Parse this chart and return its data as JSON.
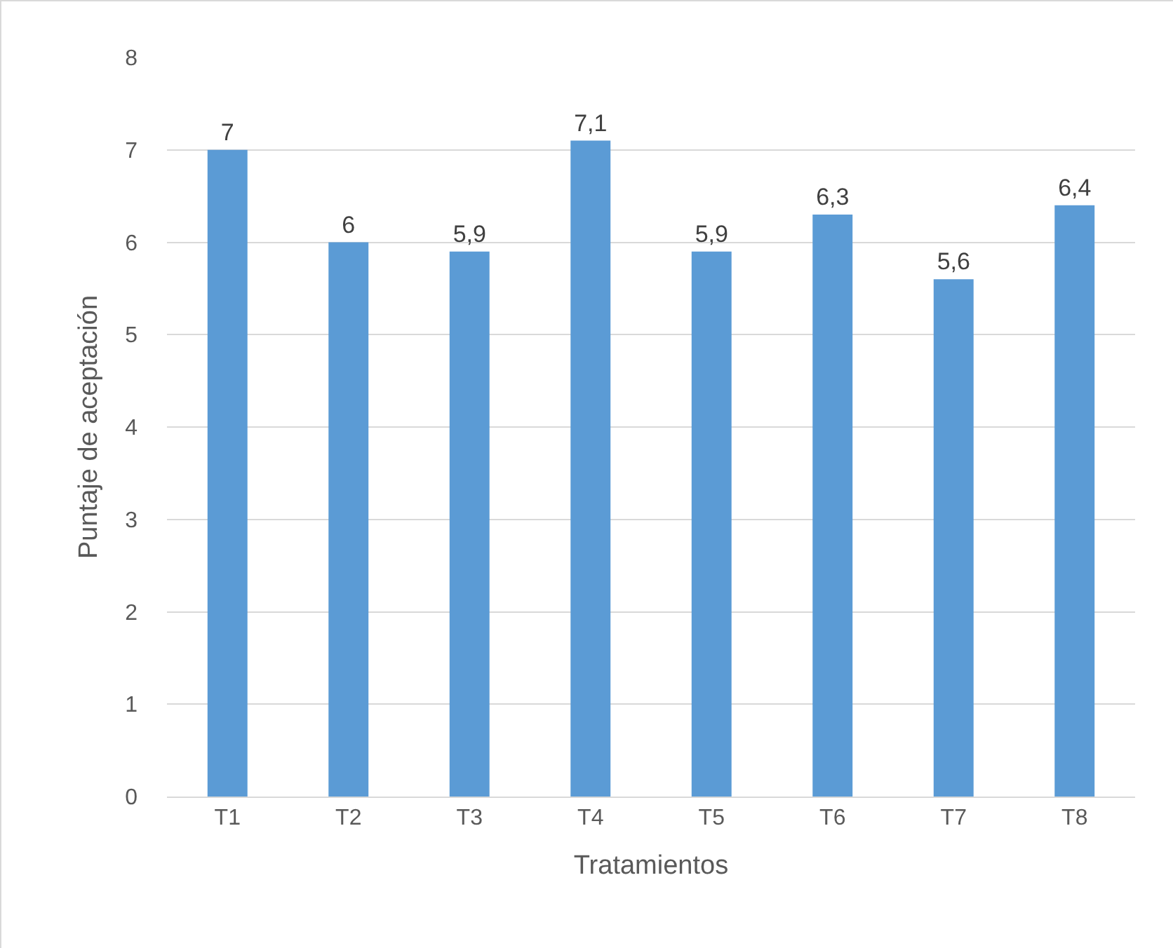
{
  "chart_data": {
    "type": "bar",
    "xlabel": "Tratamientos",
    "ylabel": "Puntaje de aceptación",
    "categories": [
      "T1",
      "T2",
      "T3",
      "T4",
      "T5",
      "T6",
      "T7",
      "T8"
    ],
    "values": [
      7,
      6,
      5.9,
      7.1,
      5.9,
      6.3,
      5.6,
      6.4
    ],
    "value_labels": [
      "7",
      "6",
      "5,9",
      "7,1",
      "5,9",
      "6,3",
      "5,6",
      "6,4"
    ],
    "color": "#5b9bd5",
    "ylim": [
      0,
      8
    ],
    "yticks": [
      0,
      1,
      2,
      3,
      4,
      5,
      6,
      7,
      8
    ],
    "grid": "y",
    "legend": false
  }
}
